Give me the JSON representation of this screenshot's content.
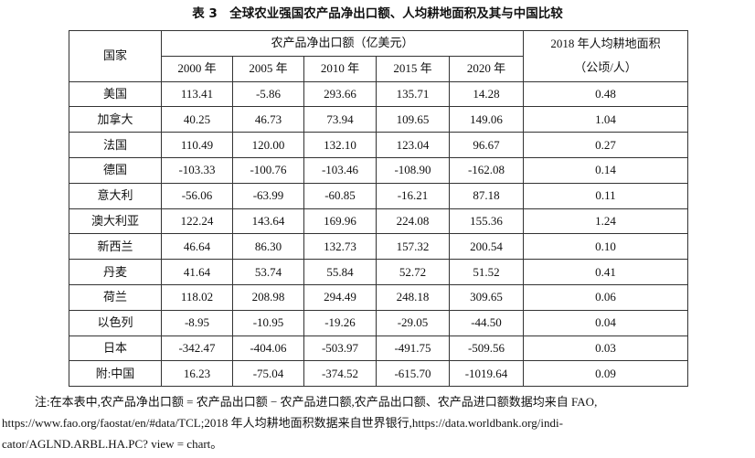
{
  "title": "表 3　全球农业强国农产品净出口额、人均耕地面积及其与中国比较",
  "table": {
    "header": {
      "country": "国家",
      "group": "农产品净出口额（亿美元）",
      "years": [
        "2000 年",
        "2005 年",
        "2010 年",
        "2015 年",
        "2020 年"
      ],
      "last": [
        "2018 年人均耕地面积",
        "（公顷/人）"
      ]
    },
    "rows": [
      [
        "美国",
        "113.41",
        "-5.86",
        "293.66",
        "135.71",
        "14.28",
        "0.48"
      ],
      [
        "加拿大",
        "40.25",
        "46.73",
        "73.94",
        "109.65",
        "149.06",
        "1.04"
      ],
      [
        "法国",
        "110.49",
        "120.00",
        "132.10",
        "123.04",
        "96.67",
        "0.27"
      ],
      [
        "德国",
        "-103.33",
        "-100.76",
        "-103.46",
        "-108.90",
        "-162.08",
        "0.14"
      ],
      [
        "意大利",
        "-56.06",
        "-63.99",
        "-60.85",
        "-16.21",
        "87.18",
        "0.11"
      ],
      [
        "澳大利亚",
        "122.24",
        "143.64",
        "169.96",
        "224.08",
        "155.36",
        "1.24"
      ],
      [
        "新西兰",
        "46.64",
        "86.30",
        "132.73",
        "157.32",
        "200.54",
        "0.10"
      ],
      [
        "丹麦",
        "41.64",
        "53.74",
        "55.84",
        "52.72",
        "51.52",
        "0.41"
      ],
      [
        "荷兰",
        "118.02",
        "208.98",
        "294.49",
        "248.18",
        "309.65",
        "0.06"
      ],
      [
        "以色列",
        "-8.95",
        "-10.95",
        "-19.26",
        "-29.05",
        "-44.50",
        "0.04"
      ],
      [
        "日本",
        "-342.47",
        "-404.06",
        "-503.97",
        "-491.75",
        "-509.56",
        "0.03"
      ],
      [
        "附:中国",
        "16.23",
        "-75.04",
        "-374.52",
        "-615.70",
        "-1019.64",
        "0.09"
      ]
    ]
  },
  "note": [
    "注:在本表中,农产品净出口额 = 农产品出口额 − 农产品进口额,农产品出口额、农产品进口额数据均来自 FAO,",
    "https://www.fao.org/faostat/en/#data/TCL;2018 年人均耕地面积数据来自世界银行,https://data.worldbank.org/indi-",
    "cator/AGLND.ARBL.HA.PC? view = chart。"
  ]
}
